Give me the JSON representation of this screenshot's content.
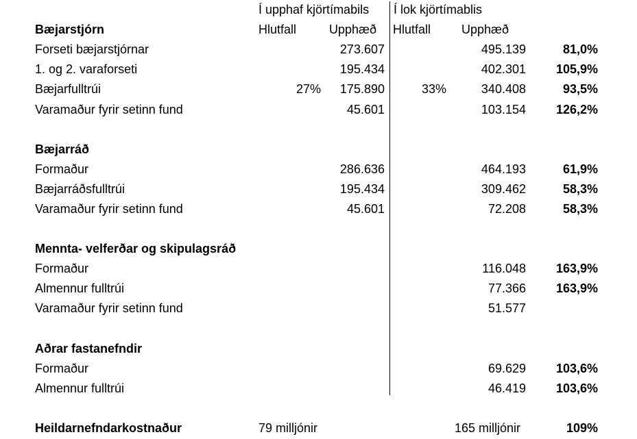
{
  "colors": {
    "background": "#ffffff",
    "text": "#000000",
    "divider": "#000000"
  },
  "table": {
    "period_headers": [
      "Í upphaf kjörtímabils",
      "Í lok kjörtímablis"
    ],
    "column_headers": {
      "hlutfall": "Hlutfall",
      "upphaed": "Upphæð"
    },
    "sections": [
      {
        "title": "Bæjarstjórn",
        "rows": [
          {
            "label": "Forseti bæjarstjórnar",
            "h1": "",
            "u1": "273.607",
            "h2": "",
            "u2": "495.139",
            "pct": "81,0%"
          },
          {
            "label": "1. og 2. varaforseti",
            "h1": "",
            "u1": "195.434",
            "h2": "",
            "u2": "402.301",
            "pct": "105,9%"
          },
          {
            "label": "Bæjarfulltrúi",
            "h1": "27%",
            "u1": "175.890",
            "h2": "33%",
            "u2": "340.408",
            "pct": "93,5%"
          },
          {
            "label": "Varamaður fyrir setinn fund",
            "h1": "",
            "u1": "45.601",
            "h2": "",
            "u2": "103.154",
            "pct": "126,2%"
          }
        ]
      },
      {
        "title": "Bæjarráð",
        "rows": [
          {
            "label": "Formaður",
            "h1": "",
            "u1": "286.636",
            "h2": "",
            "u2": "464.193",
            "pct": "61,9%"
          },
          {
            "label": "Bæjarráðsfulltrúi",
            "h1": "",
            "u1": "195.434",
            "h2": "",
            "u2": "309.462",
            "pct": "58,3%"
          },
          {
            "label": "Varamaður fyrir setinn fund",
            "h1": "",
            "u1": "45.601",
            "h2": "",
            "u2": "72.208",
            "pct": "58,3%"
          }
        ]
      },
      {
        "title": "Mennta- velferðar og skipulagsráð",
        "rows": [
          {
            "label": "Formaður",
            "h1": "",
            "u1": "",
            "h2": "",
            "u2": "116.048",
            "pct": "163,9%"
          },
          {
            "label": "Almennur fulltrúi",
            "h1": "",
            "u1": "",
            "h2": "",
            "u2": "77.366",
            "pct": "163,9%"
          },
          {
            "label": "Varamaður fyrir setinn fund",
            "h1": "",
            "u1": "",
            "h2": "",
            "u2": "51.577",
            "pct": ""
          }
        ]
      },
      {
        "title": "Aðrar fastanefndir",
        "rows": [
          {
            "label": "Formaður",
            "h1": "",
            "u1": "",
            "h2": "",
            "u2": "69.629",
            "pct": "103,6%"
          },
          {
            "label": "Almennur fulltrúi",
            "h1": "",
            "u1": "",
            "h2": "",
            "u2": "46.419",
            "pct": "103,6%"
          }
        ]
      }
    ],
    "total": {
      "label": "Heildarnefndarkostnaður",
      "start": "79 milljónir",
      "end": "165 milljónir",
      "pct": "109%"
    }
  }
}
